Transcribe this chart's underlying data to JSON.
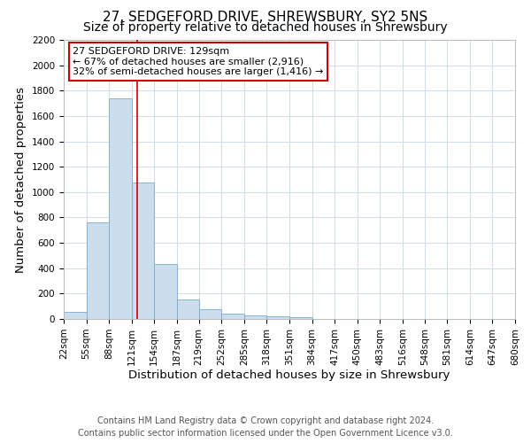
{
  "title": "27, SEDGEFORD DRIVE, SHREWSBURY, SY2 5NS",
  "subtitle": "Size of property relative to detached houses in Shrewsbury",
  "xlabel": "Distribution of detached houses by size in Shrewsbury",
  "ylabel": "Number of detached properties",
  "bin_edges": [
    22,
    55,
    88,
    121,
    154,
    187,
    219,
    252,
    285,
    318,
    351,
    384,
    417,
    450,
    483,
    516,
    548,
    581,
    614,
    647,
    680
  ],
  "bar_heights": [
    55,
    760,
    1740,
    1075,
    430,
    155,
    80,
    40,
    28,
    18,
    15,
    0,
    0,
    0,
    0,
    0,
    0,
    0,
    0,
    0
  ],
  "bar_color": "#ccdded",
  "bar_edgecolor": "#7aaac8",
  "redline_x": 129,
  "annotation_title": "27 SEDGEFORD DRIVE: 129sqm",
  "annotation_line1": "← 67% of detached houses are smaller (2,916)",
  "annotation_line2": "32% of semi-detached houses are larger (1,416) →",
  "annotation_box_facecolor": "#ffffff",
  "annotation_box_edgecolor": "#cc0000",
  "redline_color": "#cc0000",
  "ylim": [
    0,
    2200
  ],
  "yticks": [
    0,
    200,
    400,
    600,
    800,
    1000,
    1200,
    1400,
    1600,
    1800,
    2000,
    2200
  ],
  "tick_labels": [
    "22sqm",
    "55sqm",
    "88sqm",
    "121sqm",
    "154sqm",
    "187sqm",
    "219sqm",
    "252sqm",
    "285sqm",
    "318sqm",
    "351sqm",
    "384sqm",
    "417sqm",
    "450sqm",
    "483sqm",
    "516sqm",
    "548sqm",
    "581sqm",
    "614sqm",
    "647sqm",
    "680sqm"
  ],
  "footer_line1": "Contains HM Land Registry data © Crown copyright and database right 2024.",
  "footer_line2": "Contains public sector information licensed under the Open Government Licence v3.0.",
  "background_color": "#ffffff",
  "grid_color": "#d0dce8",
  "title_fontsize": 11,
  "subtitle_fontsize": 10,
  "axis_label_fontsize": 9.5,
  "tick_fontsize": 7.5,
  "annotation_fontsize": 8,
  "footer_fontsize": 7
}
